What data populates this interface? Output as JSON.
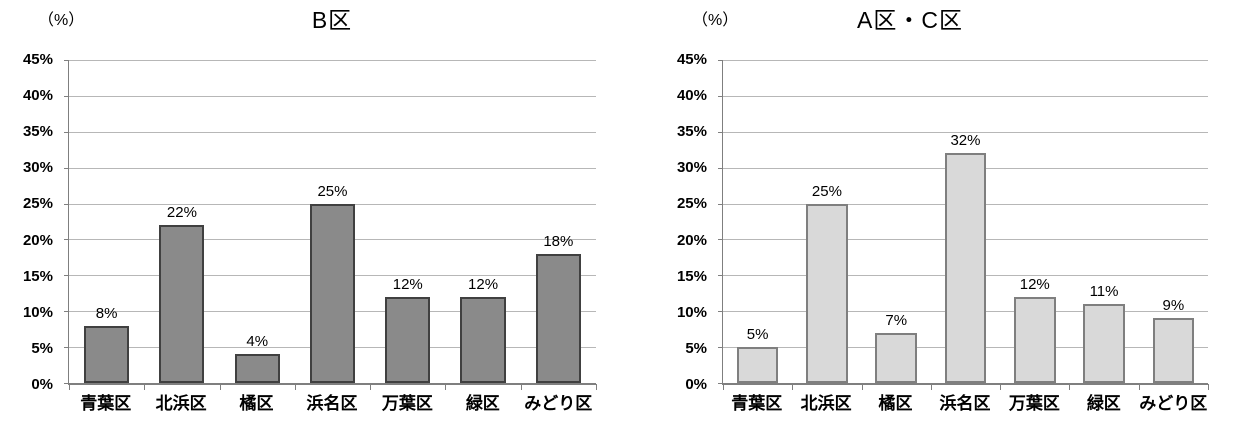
{
  "figure": {
    "background": "#ffffff"
  },
  "chart_data": [
    {
      "type": "bar",
      "title": "B区",
      "unit_label": "（%）",
      "categories": [
        "青葉区",
        "北浜区",
        "橘区",
        "浜名区",
        "万葉区",
        "緑区",
        "みどり区"
      ],
      "values": [
        8,
        22,
        4,
        25,
        12,
        12,
        18
      ],
      "data_labels": [
        "8%",
        "22%",
        "4%",
        "25%",
        "12%",
        "12%",
        "18%"
      ],
      "ylim": [
        0,
        45
      ],
      "ytick_step": 5,
      "ytick_labels": [
        "0%",
        "5%",
        "10%",
        "15%",
        "20%",
        "25%",
        "30%",
        "35%",
        "40%",
        "45%"
      ],
      "grid": true,
      "legend": "none",
      "bar_fill": "#8a8a8a",
      "bar_border": "#404040",
      "gridline_color": "#b7b7b7",
      "axis_color": "#7f7f7f",
      "text_color": "#000000"
    },
    {
      "type": "bar",
      "title": "A区・C区",
      "unit_label": "（%）",
      "categories": [
        "青葉区",
        "北浜区",
        "橘区",
        "浜名区",
        "万葉区",
        "緑区",
        "みどり区"
      ],
      "values": [
        5,
        25,
        7,
        32,
        12,
        11,
        9
      ],
      "data_labels": [
        "5%",
        "25%",
        "7%",
        "32%",
        "12%",
        "11%",
        "9%"
      ],
      "ylim": [
        0,
        45
      ],
      "ytick_step": 5,
      "ytick_labels": [
        "0%",
        "5%",
        "10%",
        "15%",
        "20%",
        "25%",
        "30%",
        "35%",
        "40%",
        "45%"
      ],
      "grid": true,
      "legend": "none",
      "bar_fill": "#d9d9d9",
      "bar_border": "#7f7f7f",
      "gridline_color": "#b7b7b7",
      "axis_color": "#7f7f7f",
      "text_color": "#000000"
    }
  ]
}
